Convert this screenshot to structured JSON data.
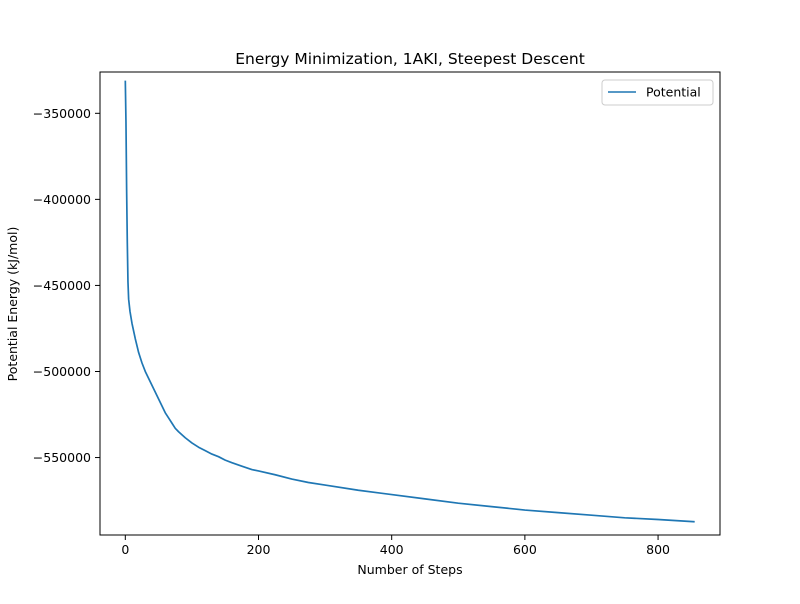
{
  "chart_data": {
    "type": "line",
    "title": "Energy Minimization, 1AKI, Steepest Descent",
    "xlabel": "Number of Steps",
    "ylabel": "Potential Energy (kJ/mol)",
    "xlim": [
      -38,
      893
    ],
    "ylim": [
      -595000,
      -326000
    ],
    "xticks": [
      0,
      200,
      400,
      600,
      800
    ],
    "xtick_labels": [
      "0",
      "200",
      "400",
      "600",
      "800"
    ],
    "yticks": [
      -350000,
      -400000,
      -450000,
      -500000,
      -550000
    ],
    "ytick_labels": [
      "−350000",
      "−400000",
      "−450000",
      "−500000",
      "−550000"
    ],
    "grid": false,
    "legend_position": "top-right",
    "colors": {
      "series": "#1f77b4",
      "axes": "#000000"
    },
    "series": [
      {
        "name": "Potential",
        "x": [
          0,
          1,
          2,
          3,
          4,
          5,
          7,
          10,
          15,
          20,
          25,
          30,
          35,
          40,
          45,
          50,
          55,
          60,
          65,
          70,
          75,
          80,
          90,
          100,
          110,
          120,
          130,
          140,
          150,
          160,
          175,
          190,
          200,
          225,
          250,
          275,
          300,
          350,
          400,
          450,
          500,
          550,
          600,
          650,
          700,
          750,
          800,
          855
        ],
        "y": [
          -331000,
          -355000,
          -395000,
          -425000,
          -448000,
          -458000,
          -465000,
          -472000,
          -481000,
          -489000,
          -495000,
          -500000,
          -504000,
          -508000,
          -512000,
          -516000,
          -520000,
          -524000,
          -527000,
          -530000,
          -533000,
          -535000,
          -538500,
          -541500,
          -544000,
          -546000,
          -548000,
          -549500,
          -551500,
          -553000,
          -555000,
          -557000,
          -557800,
          -560000,
          -562500,
          -564500,
          -566000,
          -569000,
          -571500,
          -574000,
          -576500,
          -578500,
          -580500,
          -582000,
          -583500,
          -585000,
          -586000,
          -587300
        ]
      }
    ]
  }
}
